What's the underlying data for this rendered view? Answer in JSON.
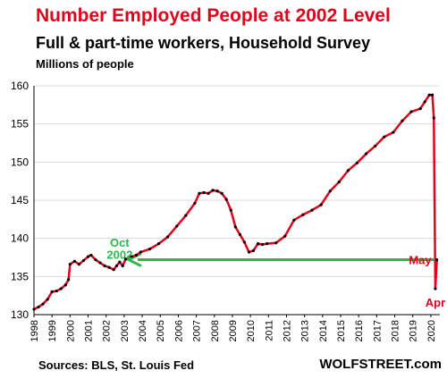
{
  "header": {
    "title": "Number Employed People at 2002 Level",
    "subtitle": "Full & part-time  workers,  Household Survey",
    "units": "Millions of people"
  },
  "footer": {
    "source": "Sources: BLS, St. Louis Fed",
    "brand": "WOLFSTREET.com"
  },
  "colors": {
    "title": "#e3001b",
    "series_line": "#e3001b",
    "series_marker": "#000000",
    "arrow": "#2db84a",
    "oct2002_label": "#2db84a",
    "month_labels": "#e3001b",
    "grid": "#d9d9d9"
  },
  "chart_data": {
    "type": "line",
    "title": "Number Employed People at 2002 Level",
    "ylabel": "Millions of people",
    "xlabel": "",
    "ylim": [
      130,
      160
    ],
    "yticks": [
      130,
      135,
      140,
      145,
      150,
      155,
      160
    ],
    "xlim": [
      1998,
      2020.5
    ],
    "xticks": [
      "1998",
      "1999",
      "2000",
      "2001",
      "2002",
      "2003",
      "2004",
      "2005",
      "2006",
      "2007",
      "2008",
      "2009",
      "2010",
      "2011",
      "2012",
      "2013",
      "2014",
      "2015",
      "2016",
      "2017",
      "2018",
      "2019",
      "2020"
    ],
    "grid": "horizontal",
    "series": [
      {
        "values": [
          [
            "1998-01",
            130.7
          ],
          [
            "1998-04",
            131.0
          ],
          [
            "1998-07",
            131.4
          ],
          [
            "1998-10",
            132.0
          ],
          [
            "1999-01",
            133.0
          ],
          [
            "1999-04",
            133.1
          ],
          [
            "1999-07",
            133.4
          ],
          [
            "1999-10",
            133.9
          ],
          [
            "1999-12",
            134.6
          ],
          [
            "2000-01",
            136.6
          ],
          [
            "2000-04",
            137.0
          ],
          [
            "2000-07",
            136.6
          ],
          [
            "2000-10",
            137.1
          ],
          [
            "2001-01",
            137.6
          ],
          [
            "2001-03",
            137.8
          ],
          [
            "2001-06",
            137.2
          ],
          [
            "2001-09",
            136.8
          ],
          [
            "2001-12",
            136.4
          ],
          [
            "2002-03",
            136.2
          ],
          [
            "2002-06",
            135.9
          ],
          [
            "2002-08",
            136.4
          ],
          [
            "2002-10",
            136.9
          ],
          [
            "2002-12",
            136.4
          ],
          [
            "2003-02",
            137.3
          ],
          [
            "2003-06",
            137.6
          ],
          [
            "2003-09",
            137.8
          ],
          [
            "2003-12",
            138.2
          ],
          [
            "2004-06",
            138.6
          ],
          [
            "2004-12",
            139.3
          ],
          [
            "2005-06",
            140.2
          ],
          [
            "2005-12",
            141.6
          ],
          [
            "2006-06",
            143.0
          ],
          [
            "2006-12",
            144.6
          ],
          [
            "2007-03",
            145.9
          ],
          [
            "2007-06",
            146.0
          ],
          [
            "2007-09",
            145.9
          ],
          [
            "2007-12",
            146.3
          ],
          [
            "2008-03",
            146.2
          ],
          [
            "2008-06",
            145.9
          ],
          [
            "2008-09",
            145.1
          ],
          [
            "2008-12",
            143.7
          ],
          [
            "2009-03",
            141.5
          ],
          [
            "2009-06",
            140.5
          ],
          [
            "2009-09",
            139.5
          ],
          [
            "2009-12",
            138.2
          ],
          [
            "2010-03",
            138.4
          ],
          [
            "2010-06",
            139.3
          ],
          [
            "2010-09",
            139.2
          ],
          [
            "2010-12",
            139.3
          ],
          [
            "2011-06",
            139.4
          ],
          [
            "2011-12",
            140.3
          ],
          [
            "2012-06",
            142.4
          ],
          [
            "2012-12",
            143.1
          ],
          [
            "2013-06",
            143.7
          ],
          [
            "2013-12",
            144.4
          ],
          [
            "2014-06",
            146.2
          ],
          [
            "2014-12",
            147.4
          ],
          [
            "2015-06",
            148.9
          ],
          [
            "2015-12",
            149.9
          ],
          [
            "2016-06",
            151.1
          ],
          [
            "2016-12",
            152.1
          ],
          [
            "2017-06",
            153.3
          ],
          [
            "2017-12",
            153.9
          ],
          [
            "2018-06",
            155.4
          ],
          [
            "2018-12",
            156.6
          ],
          [
            "2019-06",
            157.0
          ],
          [
            "2019-09",
            157.9
          ],
          [
            "2019-12",
            158.8
          ],
          [
            "2020-02",
            158.8
          ],
          [
            "2020-03",
            155.8
          ],
          [
            "2020-04",
            133.4
          ],
          [
            "2020-05",
            137.2
          ]
        ]
      }
    ],
    "annotations": [
      {
        "text": "Oct",
        "at": [
          "2002-10",
          138.9
        ],
        "color": "#2db84a"
      },
      {
        "text": "2002",
        "at": [
          "2002-10",
          137.3
        ],
        "color": "#2db84a"
      },
      {
        "text": "May",
        "at": [
          "2020-05",
          137.2
        ],
        "color": "#e3001b"
      },
      {
        "text": "Apr",
        "at": [
          "2020-04",
          133.4
        ],
        "color": "#e3001b"
      }
    ],
    "arrow": {
      "from": [
        "2020-03",
        137.2
      ],
      "to": [
        "2003-04",
        137.2
      ],
      "color": "#2db84a"
    }
  }
}
